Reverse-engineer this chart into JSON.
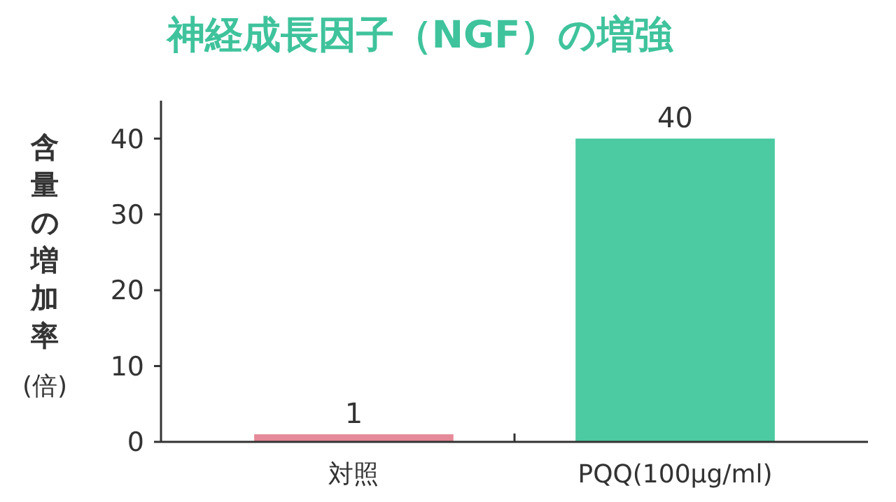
{
  "chart_data": {
    "type": "bar",
    "title": "神経成長因子（NGF）の増強",
    "ylabel": "含量の増加率(倍)",
    "categories": [
      "対照",
      "PQQ(100μg/ml)"
    ],
    "values": [
      1,
      40
    ],
    "colors": [
      "#e58a98",
      "#4ccaa2"
    ],
    "ylim": [
      0,
      45
    ],
    "yticks": [
      0,
      10,
      20,
      30,
      40
    ],
    "data_labels": true,
    "grid": false
  }
}
